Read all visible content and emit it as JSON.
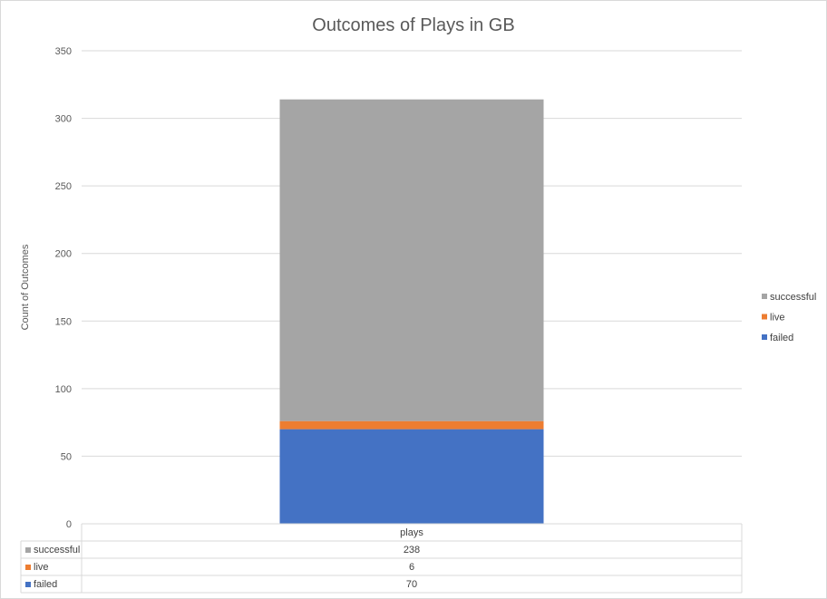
{
  "chart_data": {
    "type": "bar",
    "stacked": true,
    "title": "Outcomes of Plays in GB",
    "ylabel": "Count of Outcomes",
    "xlabel": "",
    "categories": [
      "plays"
    ],
    "ylim": [
      0,
      350
    ],
    "yticks": [
      0,
      50,
      100,
      150,
      200,
      250,
      300,
      350
    ],
    "grid": true,
    "legend_position": "right",
    "series": [
      {
        "name": "failed",
        "values": [
          70
        ],
        "color": "#4472C4"
      },
      {
        "name": "live",
        "values": [
          6
        ],
        "color": "#ED7D31"
      },
      {
        "name": "successful",
        "values": [
          238
        ],
        "color": "#A5A5A5"
      }
    ],
    "legend_order": [
      "successful",
      "live",
      "failed"
    ],
    "data_table": true
  }
}
